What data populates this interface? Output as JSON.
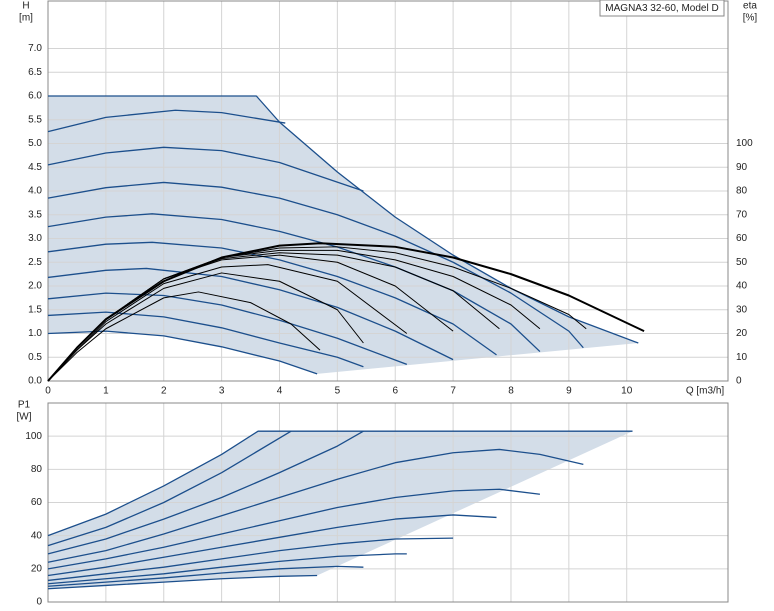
{
  "chart_data": [
    {
      "type": "line",
      "title": "MAGNA3 32-60, Model D",
      "y_label": "H",
      "y_unit": "[m]",
      "y2_label": "eta",
      "y2_unit": "[%]",
      "x_label": "Q [m3/h]",
      "xlim": [
        0,
        11.75
      ],
      "xticks": [
        0,
        1,
        2,
        3,
        4,
        5,
        6,
        7,
        8,
        9,
        10
      ],
      "ylim": [
        0,
        8
      ],
      "yticks": [
        {
          "value": 0,
          "label": "0.0"
        },
        0.5,
        {
          "value": 1,
          "label": "1.0"
        },
        1.5,
        {
          "value": 2,
          "label": "2.0"
        },
        2.5,
        {
          "value": 3,
          "label": "3.0"
        },
        3.5,
        {
          "value": 4,
          "label": "4.0"
        },
        4.5,
        {
          "value": 5,
          "label": "5.0"
        },
        5.5,
        {
          "value": 6,
          "label": "6.0"
        },
        6.5,
        {
          "value": 7,
          "label": "7.0"
        }
      ],
      "y2lim": [
        0,
        160
      ],
      "y2ticks": [
        0,
        10,
        20,
        30,
        40,
        50,
        60,
        70,
        80,
        90,
        100
      ],
      "grid": true,
      "area_color": "#d3dde8",
      "series": [
        {
          "color": "#1c4f8c",
          "x": [
            0,
            3.6,
            4,
            5,
            6,
            7,
            8,
            9,
            10.2
          ],
          "values": [
            6,
            6,
            5.45,
            4.4,
            3.45,
            2.65,
            1.95,
            1.35,
            0.8
          ]
        },
        {
          "color": "#1c4f8c",
          "x": [
            0,
            1,
            2.2,
            3,
            4.1
          ],
          "values": [
            5.25,
            5.55,
            5.7,
            5.65,
            5.43
          ]
        },
        {
          "color": "#1c4f8c",
          "x": [
            0,
            1,
            2,
            3,
            4,
            5.45
          ],
          "values": [
            4.55,
            4.8,
            4.92,
            4.85,
            4.6,
            4.0
          ]
        },
        {
          "color": "#1c4f8c",
          "x": [
            0,
            1,
            2,
            3,
            4,
            5,
            6,
            7,
            8,
            9,
            9.25
          ],
          "values": [
            3.85,
            4.07,
            4.18,
            4.08,
            3.85,
            3.5,
            3.05,
            2.5,
            1.85,
            1.05,
            0.7
          ]
        },
        {
          "color": "#1c4f8c",
          "x": [
            0,
            1,
            1.8,
            3,
            4,
            5,
            6,
            7,
            8,
            8.5
          ],
          "values": [
            3.25,
            3.45,
            3.52,
            3.4,
            3.15,
            2.82,
            2.4,
            1.9,
            1.2,
            0.62
          ]
        },
        {
          "color": "#1c4f8c",
          "x": [
            0,
            1,
            1.8,
            3,
            4,
            5,
            6,
            7,
            7.75
          ],
          "values": [
            2.72,
            2.88,
            2.92,
            2.8,
            2.55,
            2.2,
            1.75,
            1.2,
            0.55
          ]
        },
        {
          "color": "#1c4f8c",
          "x": [
            0,
            1,
            1.7,
            3,
            4,
            5,
            6,
            7
          ],
          "values": [
            2.18,
            2.33,
            2.37,
            2.2,
            1.92,
            1.55,
            1.05,
            0.45
          ]
        },
        {
          "color": "#1c4f8c",
          "x": [
            0,
            1,
            2,
            3,
            4,
            5,
            6.2
          ],
          "values": [
            1.73,
            1.85,
            1.8,
            1.6,
            1.28,
            0.9,
            0.35
          ]
        },
        {
          "color": "#1c4f8c",
          "x": [
            0,
            1,
            2,
            3,
            4,
            5,
            5.45
          ],
          "values": [
            1.38,
            1.45,
            1.35,
            1.12,
            0.8,
            0.5,
            0.3
          ]
        },
        {
          "color": "#1c4f8c",
          "x": [
            0,
            1,
            2,
            3,
            4,
            4.65
          ],
          "values": [
            1.0,
            1.05,
            0.95,
            0.72,
            0.42,
            0.15
          ]
        },
        {
          "color": "#000000",
          "axis": "y2",
          "line_width": 1,
          "x": [
            0,
            0.5,
            1,
            2,
            2.6,
            3.5,
            4.2,
            4.7
          ],
          "values": [
            0,
            12,
            22,
            35,
            37.5,
            33,
            24,
            13
          ]
        },
        {
          "color": "#000000",
          "axis": "y2",
          "line_width": 1,
          "x": [
            0,
            0.5,
            1,
            2,
            3,
            4,
            5,
            5.45
          ],
          "values": [
            0,
            13,
            24,
            39,
            45.5,
            42,
            30,
            16
          ]
        },
        {
          "color": "#000000",
          "axis": "y2",
          "line_width": 1,
          "x": [
            0,
            0.5,
            1,
            2,
            3,
            3.8,
            5,
            6.2
          ],
          "values": [
            0,
            13,
            25,
            41,
            48,
            49,
            42,
            20
          ]
        },
        {
          "color": "#000000",
          "axis": "y2",
          "line_width": 1,
          "x": [
            0,
            0.5,
            1,
            2,
            3,
            4,
            5,
            6,
            7
          ],
          "values": [
            0,
            14,
            26,
            43,
            51,
            53,
            50,
            40,
            21
          ]
        },
        {
          "color": "#000000",
          "axis": "y2",
          "line_width": 1,
          "x": [
            0,
            0.5,
            1,
            2,
            3,
            4,
            5,
            6,
            7,
            7.8
          ],
          "values": [
            0,
            14,
            26,
            43,
            51.5,
            54,
            53,
            48,
            38,
            22
          ]
        },
        {
          "color": "#000000",
          "axis": "y2",
          "line_width": 1,
          "x": [
            0,
            0.5,
            1,
            2,
            3,
            4,
            5,
            6,
            7,
            8,
            8.5
          ],
          "values": [
            0,
            14,
            26,
            43,
            52,
            55,
            55,
            51,
            44,
            32,
            22
          ]
        },
        {
          "color": "#000000",
          "axis": "y2",
          "line_width": 1,
          "x": [
            0,
            0.5,
            1,
            2,
            3,
            4,
            5,
            6,
            7,
            8,
            9,
            9.3
          ],
          "values": [
            0,
            14,
            26,
            43,
            52,
            56,
            56.5,
            54,
            48,
            39,
            28,
            22
          ]
        },
        {
          "color": "#000000",
          "axis": "y2",
          "line_width": 2,
          "x": [
            0,
            0.5,
            1,
            2,
            3,
            4,
            4.7,
            6,
            7,
            8,
            9,
            10.3
          ],
          "values": [
            0,
            14,
            26,
            42,
            52,
            57,
            58,
            56.5,
            52,
            45,
            36,
            21
          ]
        }
      ]
    },
    {
      "type": "line",
      "y_label": "P1",
      "y_unit": "[W]",
      "xlim": [
        0,
        11.75
      ],
      "ylim": [
        0,
        120
      ],
      "yticks": [
        0,
        20,
        40,
        60,
        80,
        100
      ],
      "grid": true,
      "area_color": "#d3dde8",
      "series": [
        {
          "color": "#1c4f8c",
          "x": [
            0,
            1,
            2,
            3,
            3.63,
            10.1
          ],
          "values": [
            40,
            53,
            70,
            89,
            103,
            103
          ]
        },
        {
          "color": "#1c4f8c",
          "x": [
            0,
            1,
            2,
            3,
            4.2
          ],
          "values": [
            34,
            45,
            60,
            78,
            103
          ]
        },
        {
          "color": "#1c4f8c",
          "x": [
            0,
            1,
            2,
            3,
            4,
            5,
            5.45
          ],
          "values": [
            29,
            38,
            50,
            63,
            78,
            94,
            103
          ]
        },
        {
          "color": "#1c4f8c",
          "x": [
            0,
            1,
            2,
            3,
            4,
            5,
            6,
            7,
            7.8,
            8.5,
            9.25
          ],
          "values": [
            24,
            31,
            41,
            52,
            63,
            74,
            84,
            90,
            92,
            89,
            83
          ]
        },
        {
          "color": "#1c4f8c",
          "x": [
            0,
            1,
            2,
            3,
            4,
            5,
            6,
            7,
            7.8,
            8.5
          ],
          "values": [
            20,
            26,
            33,
            41,
            49,
            57,
            63,
            67,
            68,
            65
          ]
        },
        {
          "color": "#1c4f8c",
          "x": [
            0,
            1,
            2,
            3,
            4,
            5,
            6,
            7,
            7.75
          ],
          "values": [
            16,
            21,
            27,
            33,
            39,
            45,
            50,
            52.5,
            51
          ]
        },
        {
          "color": "#1c4f8c",
          "x": [
            0,
            1,
            2,
            3,
            4,
            5,
            6,
            7
          ],
          "values": [
            13,
            17,
            21,
            26,
            31,
            35,
            38,
            38.5
          ]
        },
        {
          "color": "#1c4f8c",
          "x": [
            0,
            1,
            2,
            3,
            4,
            5,
            6,
            6.2
          ],
          "values": [
            11,
            14,
            17,
            21,
            24.5,
            27.5,
            29,
            29
          ]
        },
        {
          "color": "#1c4f8c",
          "x": [
            0,
            1,
            2,
            3,
            4,
            5,
            5.45
          ],
          "values": [
            9.5,
            12,
            14.5,
            17.5,
            20,
            21.5,
            21
          ]
        },
        {
          "color": "#1c4f8c",
          "x": [
            0,
            1,
            2,
            3,
            4,
            4.65
          ],
          "values": [
            8,
            10,
            12,
            14,
            15.5,
            16
          ]
        }
      ]
    }
  ]
}
